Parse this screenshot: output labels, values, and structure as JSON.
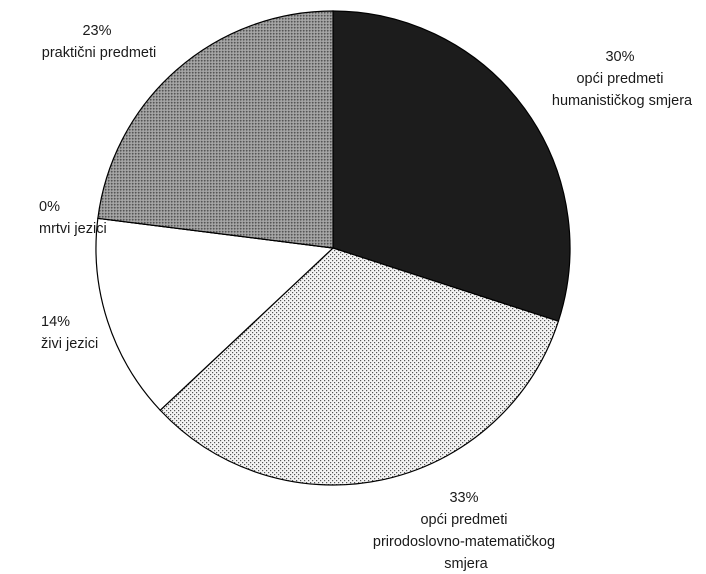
{
  "chart_data": {
    "type": "pie",
    "start_angle": "12 o'clock",
    "direction": "clockwise",
    "slices": [
      {
        "value": 30,
        "percent_label": "30%",
        "label_lines": [
          "opći predmeti",
          "humanističkog smjera"
        ],
        "fill": "black"
      },
      {
        "value": 33,
        "percent_label": "33%",
        "label_lines": [
          "opći predmeti",
          "prirodoslovno-matematičkog",
          "smjera"
        ],
        "fill": "light-dots"
      },
      {
        "value": 14,
        "percent_label": "14%",
        "label_lines": [
          "živi jezici"
        ],
        "fill": "white"
      },
      {
        "value": 0,
        "percent_label": "0%",
        "label_lines": [
          "mrtvi jezici"
        ],
        "fill": "white"
      },
      {
        "value": 23,
        "percent_label": "23%",
        "label_lines": [
          "praktični predmeti"
        ],
        "fill": "gray-dots"
      }
    ]
  }
}
